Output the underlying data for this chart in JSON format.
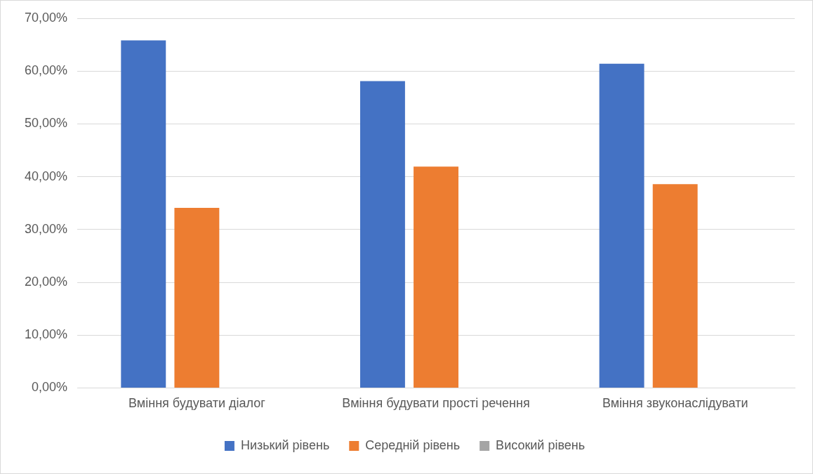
{
  "chart_data": {
    "type": "bar",
    "categories": [
      "Вміння будувати діалог",
      "Вміння будувати прості речення",
      "Вміння звуконаслідувати"
    ],
    "series": [
      {
        "name": "Низький рівень",
        "color": "#4472c4",
        "values": [
          65.8,
          58.1,
          61.4
        ]
      },
      {
        "name": "Середній рівень",
        "color": "#ed7d31",
        "values": [
          34.1,
          41.9,
          38.6
        ]
      },
      {
        "name": "Високий рівень",
        "color": "#a5a5a5",
        "values": [
          0,
          0,
          0
        ]
      }
    ],
    "ylim": [
      0,
      70
    ],
    "yticks": [
      {
        "value": 0,
        "label": "0,00%"
      },
      {
        "value": 10,
        "label": "10,00%"
      },
      {
        "value": 20,
        "label": "20,00%"
      },
      {
        "value": 30,
        "label": "30,00%"
      },
      {
        "value": 40,
        "label": "40,00%"
      },
      {
        "value": 50,
        "label": "50,00%"
      },
      {
        "value": 60,
        "label": "60,00%"
      },
      {
        "value": 70,
        "label": "70,00%"
      }
    ],
    "grid": "y",
    "legend": "bottom"
  }
}
